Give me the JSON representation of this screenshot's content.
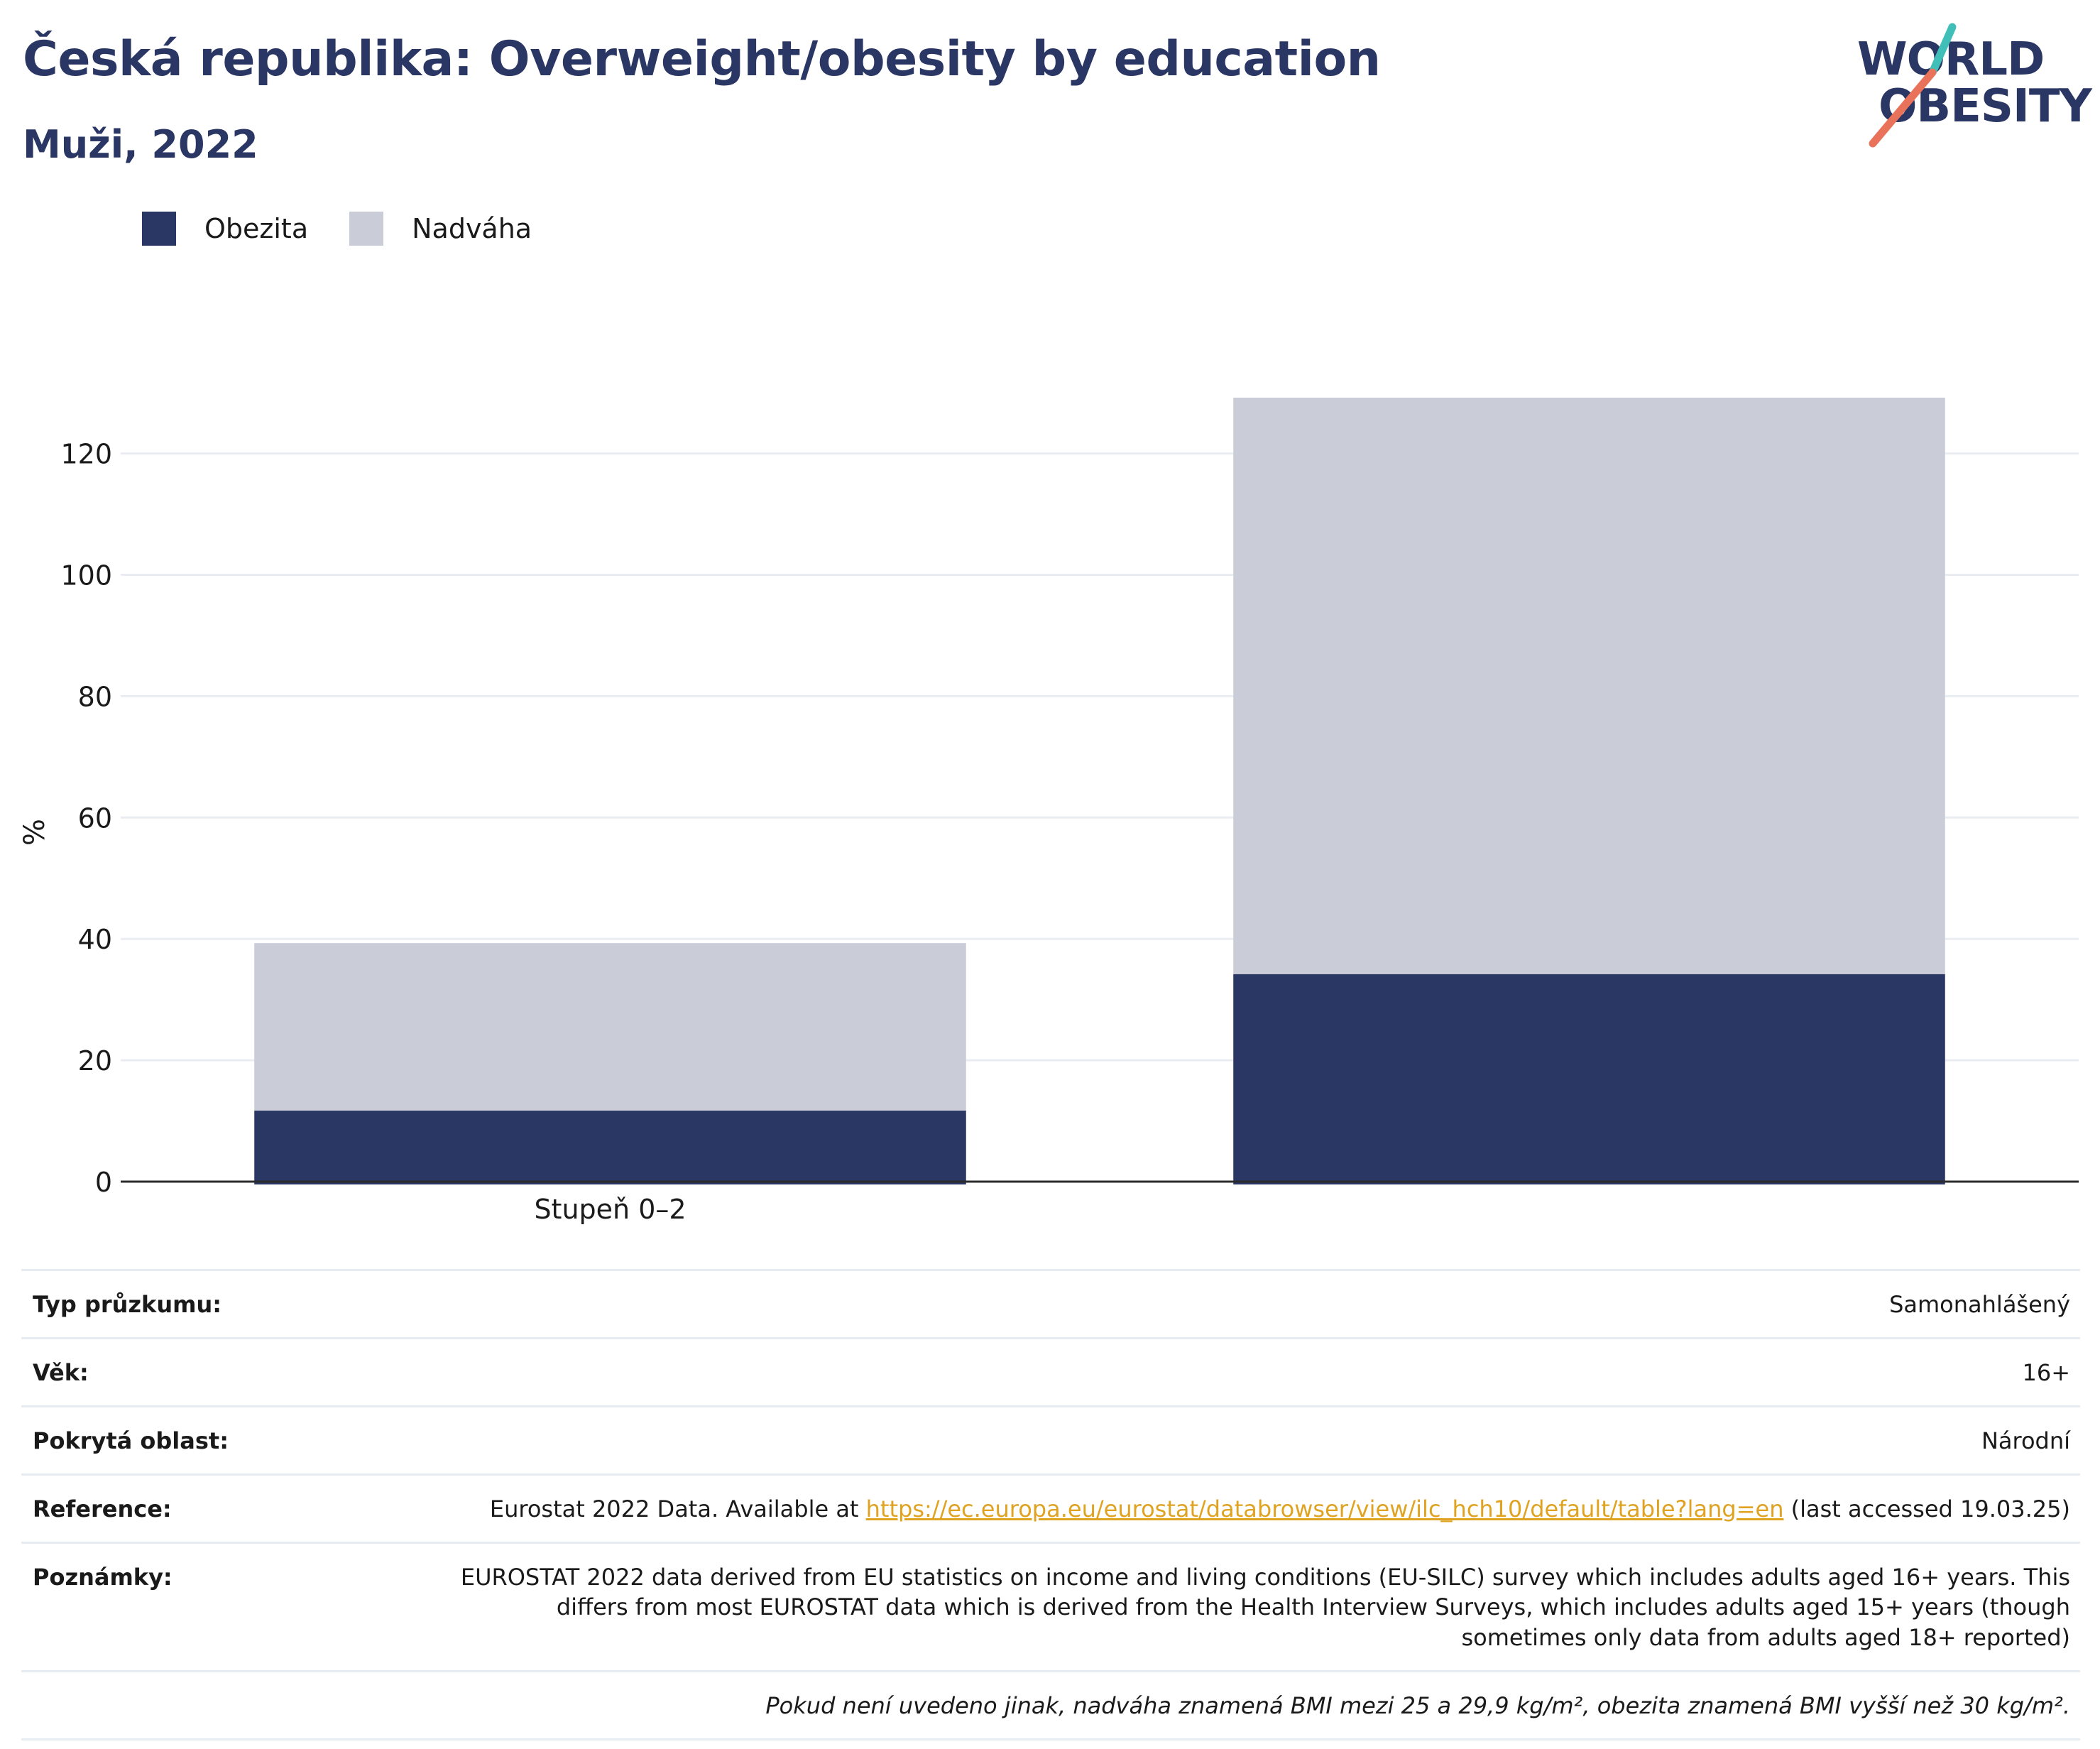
{
  "header": {
    "title": "Česká republika: Overweight/obesity by education",
    "subtitle": "Muži, 2022"
  },
  "logo": {
    "line1": "WORLD",
    "line2": "OBESITY"
  },
  "colors": {
    "brand": "#2a3663",
    "obezita": "#2a3663",
    "nadvaha": "#cacdd8",
    "logo_teal": "#3fbfb8",
    "logo_coral": "#e8735a",
    "link": "#e0a321"
  },
  "chart_data": {
    "type": "bar",
    "stacked": true,
    "categories": [
      "Stupeň 0–2",
      ""
    ],
    "series": [
      {
        "name": "Obezita",
        "color": "#2a3663",
        "values": [
          11.7,
          34.2
        ]
      },
      {
        "name": "Nadváha",
        "color": "#cacdd8",
        "values": [
          27.6,
          95.0
        ]
      }
    ],
    "ylabel": "%",
    "xlabel": "",
    "ylim": [
      0,
      129.2
    ],
    "yticks": [
      0,
      20,
      40,
      60,
      80,
      100,
      120
    ],
    "grid": true,
    "legend": "top-left"
  },
  "info": {
    "rows": [
      {
        "label": "Typ průzkumu:",
        "value": "Samonahlášený"
      },
      {
        "label": "Věk:",
        "value": "16+"
      },
      {
        "label": "Pokrytá oblast:",
        "value": "Národní"
      },
      {
        "label": "Reference:",
        "value_prefix": "Eurostat 2022 Data. Available at ",
        "link": "https://ec.europa.eu/eurostat/databrowser/view/ilc_hch10/default/table?lang=en",
        "value_suffix": " (last accessed 19.03.25)"
      },
      {
        "label": "Poznámky:",
        "value": "EUROSTAT 2022 data derived from EU statistics on income and living conditions (EU-SILC) survey which includes adults aged 16+ years. This differs from most EUROSTAT data which is derived from the Health Interview Surveys, which includes adults aged 15+ years (though sometimes only data from adults aged 18+ reported)"
      }
    ],
    "footnote": "Pokud není uvedeno jinak, nadváha znamená BMI mezi 25 a 29,9 kg/m², obezita znamená BMI vyšší než 30 kg/m²."
  }
}
